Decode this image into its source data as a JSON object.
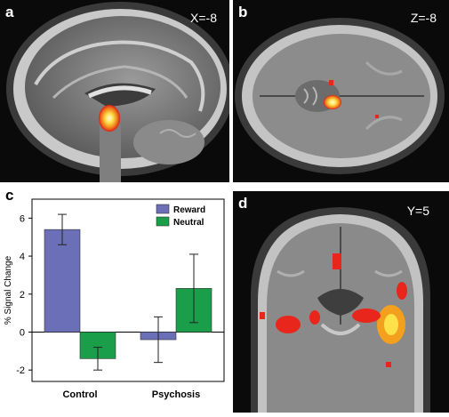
{
  "panels": {
    "a": {
      "label": "a",
      "coord": "X=-8"
    },
    "b": {
      "label": "b",
      "coord": "Z=-8"
    },
    "c": {
      "label": "c"
    },
    "d": {
      "label": "d",
      "coord": "Y=5"
    }
  },
  "colors": {
    "reward": "#6b6fb8",
    "neutral": "#1a9e4a",
    "activation_hot": "#ffe14a",
    "activation_warm": "#e8261c"
  },
  "chart_data": {
    "type": "bar",
    "categories": [
      "Control",
      "Psychosis"
    ],
    "series": [
      {
        "name": "Reward",
        "values": [
          5.4,
          -0.4
        ],
        "errors": [
          0.8,
          1.2
        ]
      },
      {
        "name": "Neutral",
        "values": [
          -1.4,
          2.3
        ],
        "errors": [
          0.6,
          1.8
        ]
      }
    ],
    "ylabel": "% Signal Change",
    "xlabel": "",
    "ylim": [
      -2.6,
      7.0
    ],
    "yticks": [
      -2,
      0,
      2,
      4,
      6
    ],
    "legend_position": "top-right",
    "grid": false
  }
}
